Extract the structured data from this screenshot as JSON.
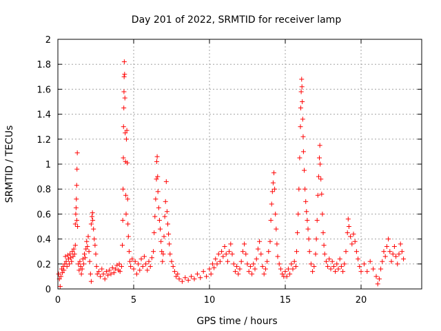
{
  "chart_data": {
    "type": "scatter",
    "title": "Day 201 of 2022, SRMTID for receiver lamp",
    "xlabel": "GPS time / hours",
    "ylabel": "SRMTID / TECUs",
    "xlim": [
      0,
      24
    ],
    "ylim": [
      0,
      2
    ],
    "xticks": [
      "0",
      "5",
      "10",
      "15",
      "20"
    ],
    "yticks": [
      "0",
      "0.2",
      "0.4",
      "0.6",
      "0.8",
      "1",
      "1.2",
      "1.4",
      "1.6",
      "1.8",
      "2"
    ],
    "grid": true,
    "marker": "plus",
    "marker_color": "#ff0000",
    "series": [
      {
        "name": "SRMTID",
        "points": [
          [
            0.05,
            0.12
          ],
          [
            0.1,
            0.08
          ],
          [
            0.15,
            0.02
          ],
          [
            0.2,
            0.1
          ],
          [
            0.25,
            0.16
          ],
          [
            0.3,
            0.13
          ],
          [
            0.35,
            0.18
          ],
          [
            0.4,
            0.15
          ],
          [
            0.45,
            0.2
          ],
          [
            0.5,
            0.26
          ],
          [
            0.55,
            0.22
          ],
          [
            0.6,
            0.18
          ],
          [
            0.65,
            0.27
          ],
          [
            0.7,
            0.24
          ],
          [
            0.75,
            0.2
          ],
          [
            0.8,
            0.28
          ],
          [
            0.85,
            0.25
          ],
          [
            0.9,
            0.22
          ],
          [
            0.95,
            0.3
          ],
          [
            1.0,
            0.26
          ],
          [
            1.05,
            0.32
          ],
          [
            1.1,
            0.28
          ],
          [
            1.15,
            0.35
          ],
          [
            1.15,
            0.52
          ],
          [
            1.18,
            0.6
          ],
          [
            1.2,
            0.65
          ],
          [
            1.22,
            0.72
          ],
          [
            1.24,
            0.83
          ],
          [
            1.25,
            0.55
          ],
          [
            1.26,
            0.96
          ],
          [
            1.28,
            1.09
          ],
          [
            1.3,
            0.5
          ],
          [
            1.35,
            0.2
          ],
          [
            1.4,
            0.15
          ],
          [
            1.45,
            0.22
          ],
          [
            1.5,
            0.18
          ],
          [
            1.55,
            0.12
          ],
          [
            1.6,
            0.16
          ],
          [
            1.65,
            0.24
          ],
          [
            1.7,
            0.2
          ],
          [
            1.75,
            0.28
          ],
          [
            1.8,
            0.25
          ],
          [
            1.85,
            0.32
          ],
          [
            1.9,
            0.38
          ],
          [
            1.95,
            0.34
          ],
          [
            2.0,
            0.42
          ],
          [
            2.05,
            0.3
          ],
          [
            2.1,
            0.22
          ],
          [
            2.15,
            0.12
          ],
          [
            2.2,
            0.06
          ],
          [
            2.2,
            0.52
          ],
          [
            2.25,
            0.58
          ],
          [
            2.28,
            0.61
          ],
          [
            2.3,
            0.55
          ],
          [
            2.35,
            0.48
          ],
          [
            2.4,
            0.4
          ],
          [
            2.45,
            0.35
          ],
          [
            2.5,
            0.28
          ],
          [
            2.55,
            0.18
          ],
          [
            2.6,
            0.12
          ],
          [
            2.7,
            0.14
          ],
          [
            2.8,
            0.1
          ],
          [
            2.9,
            0.16
          ],
          [
            3.0,
            0.12
          ],
          [
            3.1,
            0.08
          ],
          [
            3.2,
            0.14
          ],
          [
            3.3,
            0.11
          ],
          [
            3.4,
            0.15
          ],
          [
            3.5,
            0.12
          ],
          [
            3.6,
            0.17
          ],
          [
            3.7,
            0.13
          ],
          [
            3.8,
            0.16
          ],
          [
            3.9,
            0.19
          ],
          [
            4.0,
            0.15
          ],
          [
            4.05,
            0.2
          ],
          [
            4.1,
            0.14
          ],
          [
            4.2,
            0.18
          ],
          [
            4.25,
            0.35
          ],
          [
            4.28,
            0.55
          ],
          [
            4.3,
            0.8
          ],
          [
            4.32,
            1.05
          ],
          [
            4.33,
            1.3
          ],
          [
            4.35,
            1.45
          ],
          [
            4.36,
            1.58
          ],
          [
            4.37,
            1.7
          ],
          [
            4.38,
            1.82
          ],
          [
            4.4,
            1.72
          ],
          [
            4.42,
            1.53
          ],
          [
            4.44,
            1.25
          ],
          [
            4.46,
            1.02
          ],
          [
            4.48,
            0.75
          ],
          [
            4.5,
            0.6
          ],
          [
            4.52,
            1.2
          ],
          [
            4.55,
            1.27
          ],
          [
            4.58,
            1.01
          ],
          [
            4.6,
            0.72
          ],
          [
            4.62,
            0.52
          ],
          [
            4.65,
            0.42
          ],
          [
            4.7,
            0.3
          ],
          [
            4.75,
            0.22
          ],
          [
            4.8,
            0.18
          ],
          [
            4.9,
            0.24
          ],
          [
            5.0,
            0.16
          ],
          [
            5.1,
            0.22
          ],
          [
            5.2,
            0.12
          ],
          [
            5.3,
            0.2
          ],
          [
            5.4,
            0.15
          ],
          [
            5.5,
            0.24
          ],
          [
            5.6,
            0.18
          ],
          [
            5.7,
            0.26
          ],
          [
            5.8,
            0.2
          ],
          [
            5.9,
            0.15
          ],
          [
            6.0,
            0.22
          ],
          [
            6.1,
            0.18
          ],
          [
            6.2,
            0.25
          ],
          [
            6.3,
            0.3
          ],
          [
            6.35,
            0.45
          ],
          [
            6.4,
            0.58
          ],
          [
            6.45,
            0.72
          ],
          [
            6.5,
            0.88
          ],
          [
            6.52,
            1.02
          ],
          [
            6.55,
            1.06
          ],
          [
            6.58,
            0.9
          ],
          [
            6.6,
            0.78
          ],
          [
            6.65,
            0.65
          ],
          [
            6.7,
            0.55
          ],
          [
            6.75,
            0.48
          ],
          [
            6.8,
            0.38
          ],
          [
            6.85,
            0.3
          ],
          [
            6.9,
            0.22
          ],
          [
            6.95,
            0.28
          ],
          [
            7.0,
            0.42
          ],
          [
            7.05,
            0.58
          ],
          [
            7.1,
            0.7
          ],
          [
            7.15,
            0.86
          ],
          [
            7.2,
            0.62
          ],
          [
            7.25,
            0.52
          ],
          [
            7.3,
            0.44
          ],
          [
            7.35,
            0.36
          ],
          [
            7.4,
            0.28
          ],
          [
            7.5,
            0.22
          ],
          [
            7.6,
            0.18
          ],
          [
            7.7,
            0.14
          ],
          [
            7.8,
            0.1
          ],
          [
            7.9,
            0.12
          ],
          [
            8.0,
            0.08
          ],
          [
            8.2,
            0.06
          ],
          [
            8.4,
            0.09
          ],
          [
            8.6,
            0.07
          ],
          [
            8.8,
            0.1
          ],
          [
            9.0,
            0.08
          ],
          [
            9.2,
            0.12
          ],
          [
            9.4,
            0.09
          ],
          [
            9.6,
            0.14
          ],
          [
            9.8,
            0.1
          ],
          [
            10.0,
            0.16
          ],
          [
            10.1,
            0.12
          ],
          [
            10.2,
            0.2
          ],
          [
            10.3,
            0.17
          ],
          [
            10.4,
            0.24
          ],
          [
            10.5,
            0.2
          ],
          [
            10.6,
            0.28
          ],
          [
            10.7,
            0.22
          ],
          [
            10.8,
            0.3
          ],
          [
            10.9,
            0.26
          ],
          [
            11.0,
            0.34
          ],
          [
            11.1,
            0.28
          ],
          [
            11.2,
            0.22
          ],
          [
            11.3,
            0.3
          ],
          [
            11.4,
            0.36
          ],
          [
            11.5,
            0.28
          ],
          [
            11.6,
            0.2
          ],
          [
            11.7,
            0.14
          ],
          [
            11.8,
            0.18
          ],
          [
            11.9,
            0.12
          ],
          [
            12.0,
            0.16
          ],
          [
            12.1,
            0.22
          ],
          [
            12.2,
            0.3
          ],
          [
            12.3,
            0.36
          ],
          [
            12.4,
            0.28
          ],
          [
            12.5,
            0.2
          ],
          [
            12.6,
            0.14
          ],
          [
            12.7,
            0.18
          ],
          [
            12.8,
            0.12
          ],
          [
            12.9,
            0.2
          ],
          [
            13.0,
            0.16
          ],
          [
            13.1,
            0.24
          ],
          [
            13.2,
            0.32
          ],
          [
            13.3,
            0.38
          ],
          [
            13.4,
            0.28
          ],
          [
            13.5,
            0.18
          ],
          [
            13.6,
            0.12
          ],
          [
            13.7,
            0.16
          ],
          [
            13.8,
            0.22
          ],
          [
            13.9,
            0.3
          ],
          [
            14.0,
            0.38
          ],
          [
            14.05,
            0.55
          ],
          [
            14.1,
            0.68
          ],
          [
            14.15,
            0.78
          ],
          [
            14.2,
            0.85
          ],
          [
            14.25,
            0.93
          ],
          [
            14.3,
            0.8
          ],
          [
            14.35,
            0.6
          ],
          [
            14.4,
            0.48
          ],
          [
            14.45,
            0.36
          ],
          [
            14.5,
            0.26
          ],
          [
            14.6,
            0.2
          ],
          [
            14.7,
            0.16
          ],
          [
            14.8,
            0.12
          ],
          [
            14.9,
            0.1
          ],
          [
            15.0,
            0.14
          ],
          [
            15.1,
            0.1
          ],
          [
            15.2,
            0.16
          ],
          [
            15.3,
            0.12
          ],
          [
            15.4,
            0.2
          ],
          [
            15.5,
            0.16
          ],
          [
            15.6,
            0.22
          ],
          [
            15.7,
            0.18
          ],
          [
            15.75,
            0.3
          ],
          [
            15.8,
            0.45
          ],
          [
            15.85,
            0.6
          ],
          [
            15.9,
            0.8
          ],
          [
            15.95,
            1.05
          ],
          [
            16.0,
            1.3
          ],
          [
            16.02,
            1.45
          ],
          [
            16.05,
            1.58
          ],
          [
            16.08,
            1.68
          ],
          [
            16.1,
            1.62
          ],
          [
            16.12,
            1.5
          ],
          [
            16.15,
            1.36
          ],
          [
            16.18,
            1.22
          ],
          [
            16.2,
            1.1
          ],
          [
            16.25,
            0.95
          ],
          [
            16.3,
            0.8
          ],
          [
            16.35,
            0.7
          ],
          [
            16.4,
            0.62
          ],
          [
            16.45,
            0.55
          ],
          [
            16.5,
            0.48
          ],
          [
            16.55,
            0.4
          ],
          [
            16.6,
            0.3
          ],
          [
            16.7,
            0.2
          ],
          [
            16.8,
            0.14
          ],
          [
            16.9,
            0.18
          ],
          [
            17.0,
            0.28
          ],
          [
            17.05,
            0.4
          ],
          [
            17.1,
            0.55
          ],
          [
            17.15,
            0.75
          ],
          [
            17.2,
            0.9
          ],
          [
            17.25,
            1.05
          ],
          [
            17.28,
            1.15
          ],
          [
            17.3,
            1.0
          ],
          [
            17.35,
            0.88
          ],
          [
            17.4,
            0.76
          ],
          [
            17.45,
            0.6
          ],
          [
            17.5,
            0.45
          ],
          [
            17.55,
            0.35
          ],
          [
            17.6,
            0.28
          ],
          [
            17.7,
            0.22
          ],
          [
            17.8,
            0.18
          ],
          [
            17.9,
            0.24
          ],
          [
            18.0,
            0.16
          ],
          [
            18.1,
            0.22
          ],
          [
            18.2,
            0.18
          ],
          [
            18.3,
            0.14
          ],
          [
            18.4,
            0.2
          ],
          [
            18.5,
            0.16
          ],
          [
            18.6,
            0.24
          ],
          [
            18.7,
            0.18
          ],
          [
            18.8,
            0.14
          ],
          [
            18.9,
            0.2
          ],
          [
            19.0,
            0.3
          ],
          [
            19.1,
            0.45
          ],
          [
            19.15,
            0.56
          ],
          [
            19.2,
            0.5
          ],
          [
            19.3,
            0.42
          ],
          [
            19.4,
            0.36
          ],
          [
            19.5,
            0.44
          ],
          [
            19.6,
            0.38
          ],
          [
            19.7,
            0.3
          ],
          [
            19.8,
            0.24
          ],
          [
            19.9,
            0.18
          ],
          [
            20.0,
            0.14
          ],
          [
            20.2,
            0.2
          ],
          [
            20.4,
            0.14
          ],
          [
            20.6,
            0.22
          ],
          [
            20.8,
            0.16
          ],
          [
            21.0,
            0.1
          ],
          [
            21.1,
            0.04
          ],
          [
            21.2,
            0.08
          ],
          [
            21.3,
            0.16
          ],
          [
            21.4,
            0.22
          ],
          [
            21.5,
            0.3
          ],
          [
            21.6,
            0.26
          ],
          [
            21.7,
            0.34
          ],
          [
            21.8,
            0.4
          ],
          [
            21.9,
            0.3
          ],
          [
            22.0,
            0.22
          ],
          [
            22.1,
            0.28
          ],
          [
            22.2,
            0.34
          ],
          [
            22.3,
            0.26
          ],
          [
            22.4,
            0.2
          ],
          [
            22.5,
            0.28
          ],
          [
            22.6,
            0.36
          ],
          [
            22.7,
            0.3
          ],
          [
            22.8,
            0.24
          ]
        ]
      }
    ]
  }
}
